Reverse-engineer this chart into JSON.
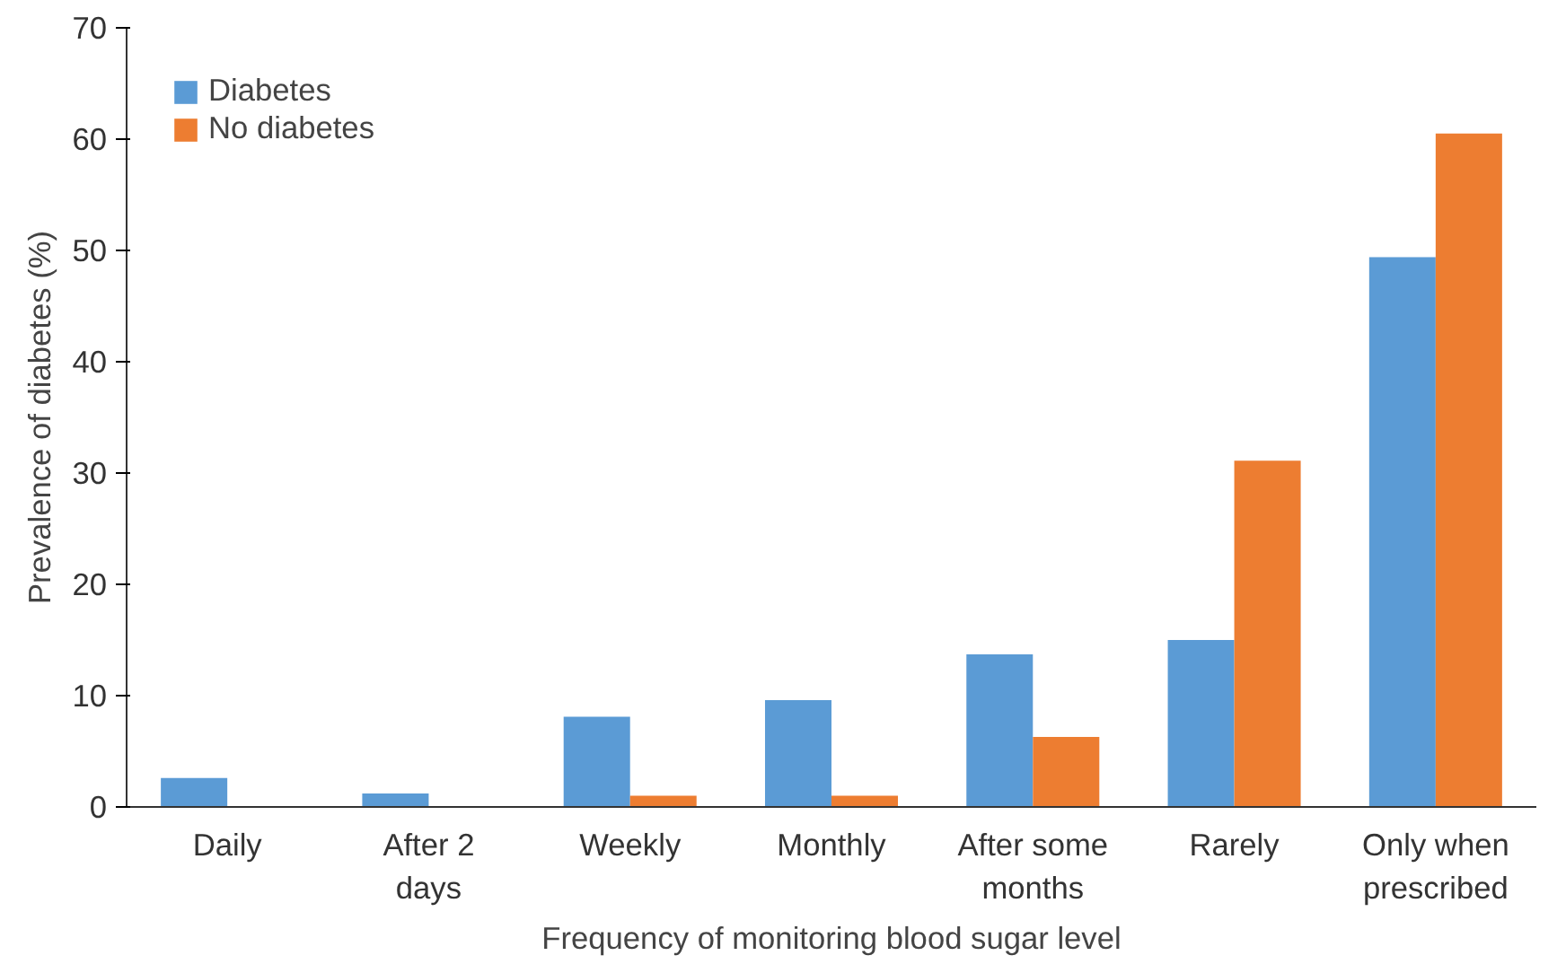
{
  "chart_data": {
    "type": "bar",
    "xlabel": "Frequency of monitoring blood sugar level",
    "ylabel": "Prevalence of diabetes (%)",
    "categories": [
      "Daily",
      "After 2 days",
      "Weekly",
      "Monthly",
      "After some months",
      "Rarely",
      "Only when prescribed"
    ],
    "series": [
      {
        "name": "Diabetes",
        "color": "#5b9bd5",
        "values": [
          2.6,
          1.2,
          8.1,
          9.6,
          13.7,
          15.0,
          49.4
        ]
      },
      {
        "name": "No diabetes",
        "color": "#ed7d31",
        "values": [
          0,
          0,
          1.0,
          1.0,
          6.3,
          31.1,
          60.5
        ]
      }
    ],
    "ylim": [
      0,
      70
    ],
    "yticks": [
      0,
      10,
      20,
      30,
      40,
      50,
      60,
      70
    ],
    "grid": false,
    "legend": "top left"
  }
}
